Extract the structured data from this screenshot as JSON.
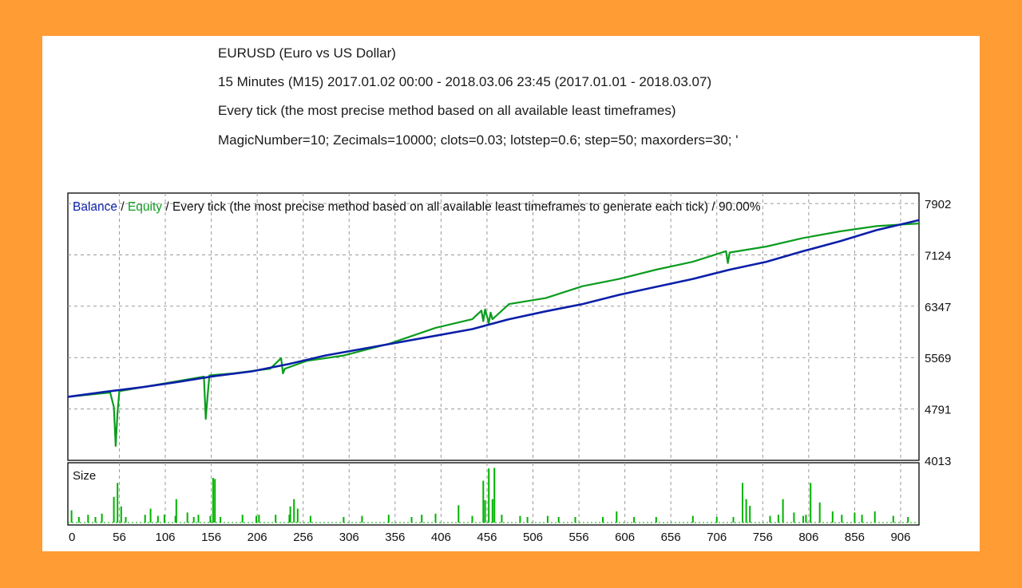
{
  "header": {
    "symbol": "EURUSD (Euro vs US Dollar)",
    "period": "15 Minutes (M15) 2017.01.02 00:00 - 2018.03.06 23:45 (2017.01.01 - 2018.03.07)",
    "model": "Every tick (the most precise method based on all available least timeframes)",
    "params": "MagicNumber=10; Zecimals=10000; clots=0.03; lotstep=0.6; step=50; maxorders=30; '"
  },
  "chart_data": [
    {
      "type": "line",
      "legend": {
        "balance": "Balance",
        "sep1": " / ",
        "equity": "Equity",
        "rest": " / Every tick (the most precise method based on all available least timeframes to generate each tick) / 90.00%"
      },
      "ylim": [
        4013,
        8060
      ],
      "y_ticks": [
        7902,
        7124,
        6347,
        5569,
        4791,
        4013
      ],
      "x_ticks": [
        0,
        56,
        106,
        156,
        206,
        256,
        306,
        356,
        406,
        456,
        506,
        556,
        606,
        656,
        706,
        756,
        806,
        856,
        906
      ],
      "xlim": [
        0,
        926
      ],
      "series": [
        {
          "name": "Balance",
          "color": "#0b1fa8",
          "points": [
            [
              0,
              4975
            ],
            [
              40,
              5050
            ],
            [
              80,
              5120
            ],
            [
              120,
              5200
            ],
            [
              160,
              5290
            ],
            [
              200,
              5360
            ],
            [
              240,
              5470
            ],
            [
              280,
              5600
            ],
            [
              320,
              5700
            ],
            [
              360,
              5800
            ],
            [
              400,
              5900
            ],
            [
              440,
              6000
            ],
            [
              480,
              6150
            ],
            [
              520,
              6270
            ],
            [
              560,
              6380
            ],
            [
              600,
              6520
            ],
            [
              640,
              6640
            ],
            [
              680,
              6760
            ],
            [
              720,
              6900
            ],
            [
              760,
              7020
            ],
            [
              800,
              7180
            ],
            [
              840,
              7330
            ],
            [
              880,
              7500
            ],
            [
              926,
              7650
            ]
          ]
        },
        {
          "name": "Equity",
          "color": "#0b9c1e",
          "points": [
            [
              0,
              4975
            ],
            [
              46,
              5040
            ],
            [
              50,
              4820
            ],
            [
              52,
              4230
            ],
            [
              54,
              4740
            ],
            [
              56,
              5060
            ],
            [
              100,
              5165
            ],
            [
              148,
              5280
            ],
            [
              150,
              4640
            ],
            [
              152,
              4990
            ],
            [
              154,
              5300
            ],
            [
              180,
              5330
            ],
            [
              220,
              5400
            ],
            [
              232,
              5560
            ],
            [
              234,
              5330
            ],
            [
              236,
              5400
            ],
            [
              260,
              5520
            ],
            [
              300,
              5600
            ],
            [
              350,
              5780
            ],
            [
              400,
              6020
            ],
            [
              440,
              6150
            ],
            [
              450,
              6280
            ],
            [
              452,
              6120
            ],
            [
              454,
              6300
            ],
            [
              458,
              6090
            ],
            [
              460,
              6250
            ],
            [
              462,
              6150
            ],
            [
              480,
              6380
            ],
            [
              520,
              6470
            ],
            [
              560,
              6650
            ],
            [
              600,
              6760
            ],
            [
              640,
              6900
            ],
            [
              680,
              7020
            ],
            [
              716,
              7180
            ],
            [
              718,
              7000
            ],
            [
              720,
              7160
            ],
            [
              760,
              7250
            ],
            [
              800,
              7380
            ],
            [
              840,
              7480
            ],
            [
              880,
              7560
            ],
            [
              926,
              7600
            ]
          ]
        }
      ]
    },
    {
      "type": "bar",
      "title": "Size",
      "color": "#00b400",
      "xlim": [
        0,
        926
      ],
      "ylim": [
        0,
        1
      ],
      "bars": [
        [
          4,
          0.22
        ],
        [
          12,
          0.1
        ],
        [
          22,
          0.14
        ],
        [
          30,
          0.1
        ],
        [
          37,
          0.16
        ],
        [
          50,
          0.46
        ],
        [
          54,
          0.71
        ],
        [
          58,
          0.29
        ],
        [
          63,
          0.1
        ],
        [
          84,
          0.14
        ],
        [
          90,
          0.25
        ],
        [
          98,
          0.12
        ],
        [
          105,
          0.14
        ],
        [
          117,
          0.12
        ],
        [
          118,
          0.42
        ],
        [
          130,
          0.18
        ],
        [
          137,
          0.1
        ],
        [
          142,
          0.14
        ],
        [
          155,
          0.12
        ],
        [
          158,
          0.8
        ],
        [
          160,
          0.78
        ],
        [
          166,
          0.1
        ],
        [
          190,
          0.14
        ],
        [
          205,
          0.12
        ],
        [
          208,
          0.14
        ],
        [
          226,
          0.14
        ],
        [
          241,
          0.14
        ],
        [
          242,
          0.29
        ],
        [
          246,
          0.42
        ],
        [
          250,
          0.25
        ],
        [
          264,
          0.12
        ],
        [
          300,
          0.1
        ],
        [
          320,
          0.12
        ],
        [
          349,
          0.14
        ],
        [
          374,
          0.1
        ],
        [
          385,
          0.14
        ],
        [
          400,
          0.14
        ],
        [
          400,
          0.16
        ],
        [
          425,
          0.31
        ],
        [
          440,
          0.12
        ],
        [
          452,
          0.75
        ],
        [
          454,
          0.4
        ],
        [
          458,
          0.97
        ],
        [
          462,
          0.42
        ],
        [
          464,
          0.98
        ],
        [
          472,
          0.14
        ],
        [
          492,
          0.12
        ],
        [
          500,
          0.1
        ],
        [
          522,
          0.12
        ],
        [
          534,
          0.1
        ],
        [
          552,
          0.1
        ],
        [
          582,
          0.1
        ],
        [
          597,
          0.2
        ],
        [
          616,
          0.1
        ],
        [
          640,
          0.1
        ],
        [
          680,
          0.12
        ],
        [
          706,
          0.1
        ],
        [
          724,
          0.1
        ],
        [
          734,
          0.71
        ],
        [
          738,
          0.42
        ],
        [
          742,
          0.3
        ],
        [
          764,
          0.12
        ],
        [
          773,
          0.14
        ],
        [
          778,
          0.42
        ],
        [
          790,
          0.18
        ],
        [
          800,
          0.12
        ],
        [
          803,
          0.14
        ],
        [
          808,
          0.71
        ],
        [
          818,
          0.36
        ],
        [
          832,
          0.2
        ],
        [
          842,
          0.14
        ],
        [
          856,
          0.18
        ],
        [
          864,
          0.14
        ],
        [
          878,
          0.2
        ],
        [
          898,
          0.12
        ],
        [
          914,
          0.1
        ]
      ]
    }
  ]
}
